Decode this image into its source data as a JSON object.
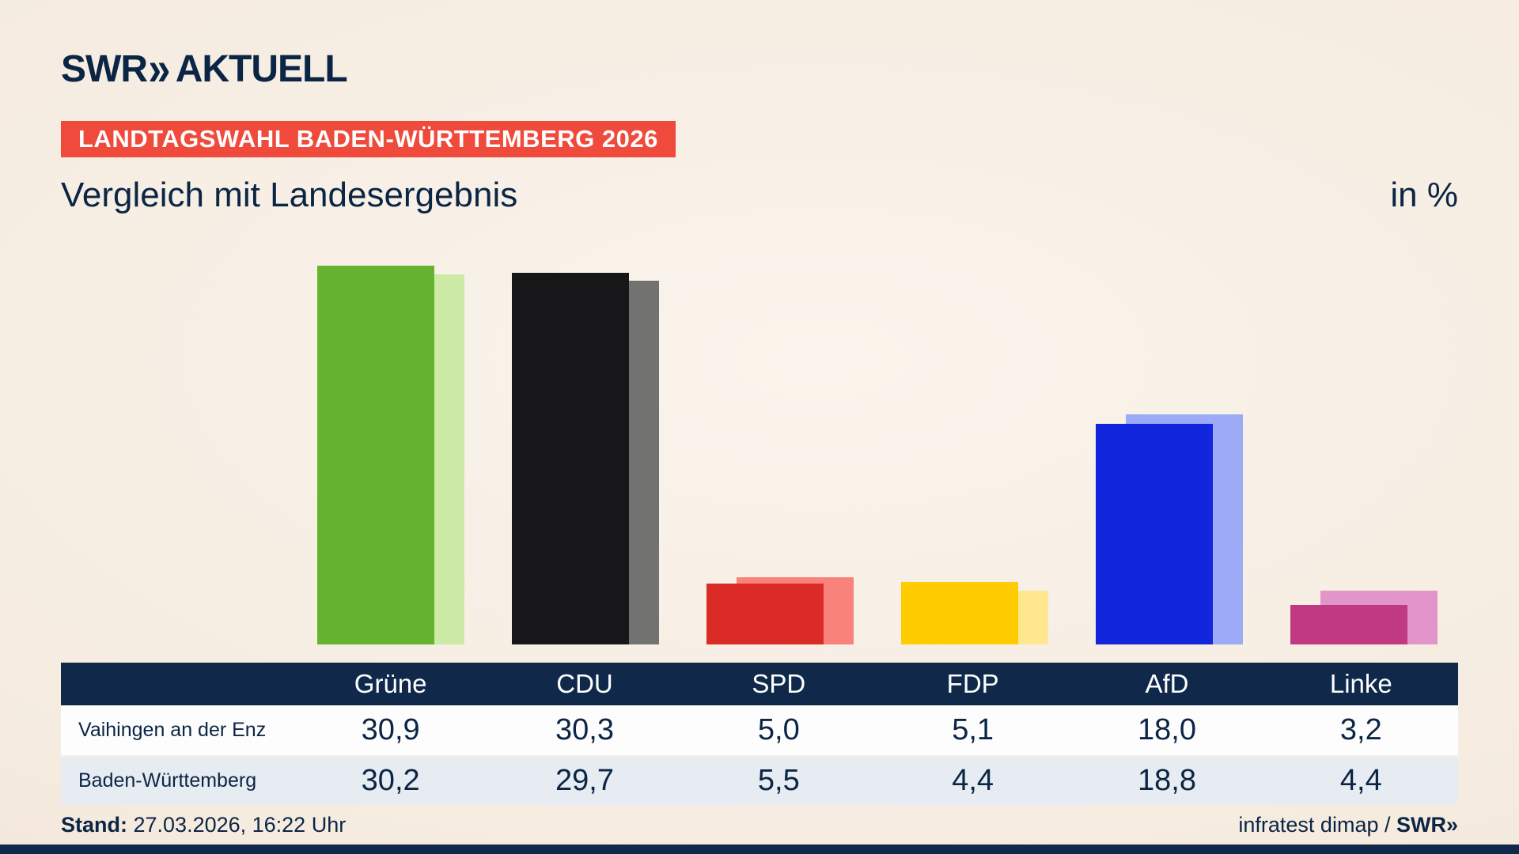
{
  "brand": {
    "logo_swr": "SWR",
    "logo_chevrons": "»",
    "logo_aktuell": "AKTUELL"
  },
  "header": {
    "badge": "LANDTAGSWAHL BADEN-WÜRTTEMBERG 2026",
    "title": "Vergleich mit Landesergebnis",
    "unit_label": "in %"
  },
  "chart_data": {
    "type": "bar",
    "title": "Vergleich mit Landesergebnis",
    "unit": "%",
    "categories": [
      "Grüne",
      "CDU",
      "SPD",
      "FDP",
      "AfD",
      "Linke"
    ],
    "series": [
      {
        "name": "Vaihingen an der Enz",
        "values": [
          30.9,
          30.3,
          5.0,
          5.1,
          18.0,
          3.2
        ]
      },
      {
        "name": "Baden-Württemberg",
        "values": [
          30.2,
          29.7,
          5.5,
          4.4,
          18.8,
          4.4
        ]
      }
    ],
    "colors_front": [
      "#65b32e",
      "#17171a",
      "#db2b27",
      "#ffcc00",
      "#1226de",
      "#c03a83"
    ],
    "colors_back": [
      "#cdeba6",
      "#727270",
      "#f9837b",
      "#ffe78f",
      "#9dabf7",
      "#e295c8"
    ],
    "ylim": [
      0,
      33
    ],
    "grid": false,
    "legend_position": "table-below"
  },
  "table": {
    "header": [
      "",
      "Grüne",
      "CDU",
      "SPD",
      "FDP",
      "AfD",
      "Linke"
    ],
    "rows": [
      {
        "label": "Vaihingen an der Enz",
        "values": [
          "30,9",
          "30,3",
          "5,0",
          "5,1",
          "18,0",
          "3,2"
        ]
      },
      {
        "label": "Baden-Württemberg",
        "values": [
          "30,2",
          "29,7",
          "5,5",
          "4,4",
          "18,8",
          "4,4"
        ]
      }
    ]
  },
  "footer": {
    "stand_label": "Stand:",
    "stand_value": " 27.03.2026, 16:22 Uhr",
    "source_text": "infratest dimap / ",
    "source_brand": "SWR»"
  }
}
